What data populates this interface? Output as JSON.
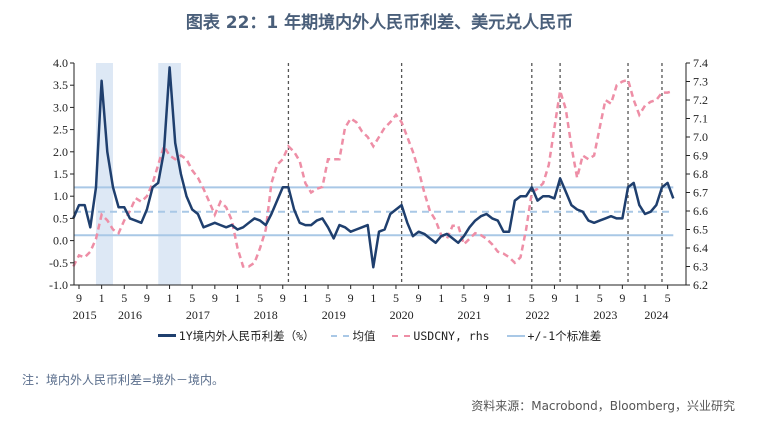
{
  "title": "图表 22：1 年期境内外人民币利差、美元兑人民币",
  "legend": [
    "1Y境内外人民币利差（%）",
    "均值",
    "USDCNY, rhs",
    "+/-1个标准差"
  ],
  "note": "注：境内外人民币利差=境外－境内。",
  "source": "资料来源：Macrobond，Bloomberg，兴业研究",
  "colors": {
    "spread": "#1f3f6e",
    "usdcny": "#ee8ea6",
    "band": "#a9c8e6",
    "shade": "#dde8f5",
    "vline": "#555555"
  },
  "chart_data": {
    "type": "line",
    "x_start": "2015-08",
    "x": [
      "2015-08",
      "2015-09",
      "2015-10",
      "2015-11",
      "2015-12",
      "2016-01",
      "2016-02",
      "2016-03",
      "2016-04",
      "2016-05",
      "2016-06",
      "2016-07",
      "2016-08",
      "2016-09",
      "2016-10",
      "2016-11",
      "2016-12",
      "2017-01",
      "2017-02",
      "2017-03",
      "2017-04",
      "2017-05",
      "2017-06",
      "2017-07",
      "2017-08",
      "2017-09",
      "2017-10",
      "2017-11",
      "2017-12",
      "2018-01",
      "2018-02",
      "2018-03",
      "2018-04",
      "2018-05",
      "2018-06",
      "2018-07",
      "2018-08",
      "2018-09",
      "2018-10",
      "2018-11",
      "2018-12",
      "2019-01",
      "2019-02",
      "2019-03",
      "2019-04",
      "2019-05",
      "2019-06",
      "2019-07",
      "2019-08",
      "2019-09",
      "2019-10",
      "2019-11",
      "2019-12",
      "2020-01",
      "2020-02",
      "2020-03",
      "2020-04",
      "2020-05",
      "2020-06",
      "2020-07",
      "2020-08",
      "2020-09",
      "2020-10",
      "2020-11",
      "2020-12",
      "2021-01",
      "2021-02",
      "2021-03",
      "2021-04",
      "2021-05",
      "2021-06",
      "2021-07",
      "2021-08",
      "2021-09",
      "2021-10",
      "2021-11",
      "2021-12",
      "2022-01",
      "2022-02",
      "2022-03",
      "2022-04",
      "2022-05",
      "2022-06",
      "2022-07",
      "2022-08",
      "2022-09",
      "2022-10",
      "2022-11",
      "2022-12",
      "2023-01",
      "2023-02",
      "2023-03",
      "2023-04",
      "2023-05",
      "2023-06",
      "2023-07",
      "2023-08",
      "2023-09",
      "2023-10",
      "2023-11",
      "2023-12",
      "2024-01",
      "2024-02",
      "2024-03",
      "2024-04",
      "2024-05",
      "2024-06"
    ],
    "series": [
      {
        "name": "1Y境内外人民币利差（%）",
        "axis": "left",
        "values": [
          0.5,
          0.8,
          0.8,
          0.3,
          1.2,
          3.6,
          2.0,
          1.2,
          0.75,
          0.75,
          0.5,
          0.45,
          0.4,
          0.7,
          1.2,
          1.3,
          2.0,
          3.9,
          2.2,
          1.5,
          1.0,
          0.7,
          0.6,
          0.3,
          0.35,
          0.4,
          0.35,
          0.3,
          0.35,
          0.25,
          0.3,
          0.4,
          0.5,
          0.45,
          0.35,
          0.6,
          0.9,
          1.2,
          1.2,
          0.7,
          0.4,
          0.35,
          0.35,
          0.45,
          0.5,
          0.3,
          0.05,
          0.35,
          0.3,
          0.2,
          0.25,
          0.3,
          0.35,
          -0.6,
          0.2,
          0.25,
          0.6,
          0.7,
          0.8,
          0.4,
          0.1,
          0.2,
          0.15,
          0.05,
          -0.05,
          0.1,
          0.15,
          0.05,
          -0.05,
          0.1,
          0.3,
          0.45,
          0.55,
          0.6,
          0.5,
          0.45,
          0.2,
          0.2,
          0.9,
          1.0,
          1.0,
          1.2,
          0.9,
          1.0,
          1.0,
          0.95,
          1.4,
          1.1,
          0.8,
          0.7,
          0.65,
          0.45,
          0.4,
          0.45,
          0.5,
          0.55,
          0.5,
          0.5,
          1.2,
          1.3,
          0.8,
          0.6,
          0.65,
          0.8,
          1.2,
          1.3,
          0.95
        ]
      },
      {
        "name": "USDCNY, rhs",
        "axis": "right",
        "values": [
          6.3,
          6.36,
          6.35,
          6.38,
          6.45,
          6.58,
          6.55,
          6.5,
          6.48,
          6.55,
          6.6,
          6.67,
          6.65,
          6.68,
          6.75,
          6.85,
          6.95,
          6.9,
          6.88,
          6.9,
          6.88,
          6.82,
          6.78,
          6.72,
          6.65,
          6.58,
          6.65,
          6.62,
          6.55,
          6.4,
          6.3,
          6.3,
          6.32,
          6.4,
          6.5,
          6.75,
          6.85,
          6.88,
          6.95,
          6.92,
          6.87,
          6.75,
          6.7,
          6.72,
          6.73,
          6.88,
          6.88,
          6.88,
          7.05,
          7.1,
          7.08,
          7.03,
          7.0,
          6.95,
          7.0,
          7.05,
          7.08,
          7.12,
          7.08,
          7.0,
          6.92,
          6.82,
          6.7,
          6.6,
          6.55,
          6.47,
          6.45,
          6.52,
          6.52,
          6.42,
          6.45,
          6.48,
          6.47,
          6.45,
          6.42,
          6.38,
          6.37,
          6.35,
          6.32,
          6.35,
          6.5,
          6.7,
          6.72,
          6.75,
          6.85,
          7.05,
          7.25,
          7.15,
          6.95,
          6.78,
          6.9,
          6.88,
          6.9,
          7.05,
          7.2,
          7.18,
          7.28,
          7.3,
          7.31,
          7.2,
          7.12,
          7.17,
          7.19,
          7.2,
          7.24,
          7.24,
          7.25
        ]
      }
    ],
    "mean": 0.65,
    "plus_1sd": 1.2,
    "minus_1sd": 0.12,
    "shaded_periods": [
      [
        "2015-12",
        "2016-03"
      ],
      [
        "2016-11",
        "2017-03"
      ]
    ],
    "event_lines": [
      "2018-10",
      "2020-06",
      "2022-05",
      "2022-10",
      "2023-10",
      "2024-04"
    ],
    "ylim_left": [
      -1.0,
      4.0
    ],
    "yticks_left": [
      "-1.0",
      "-0.5",
      "0.0",
      "0.5",
      "1.0",
      "1.5",
      "2.0",
      "2.5",
      "3.0",
      "3.5",
      "4.0"
    ],
    "ylim_right": [
      6.2,
      7.4
    ],
    "yticks_right": [
      "6.2",
      "6.3",
      "6.4",
      "6.5",
      "6.6",
      "6.7",
      "6.8",
      "6.9",
      "7.0",
      "7.1",
      "7.2",
      "7.3",
      "7.4"
    ],
    "xtick_months": [
      "9",
      "1",
      "5"
    ],
    "year_labels": [
      "2015",
      "2016",
      "2017",
      "2018",
      "2019",
      "2020",
      "2021",
      "2022",
      "2023",
      "2024"
    ]
  }
}
